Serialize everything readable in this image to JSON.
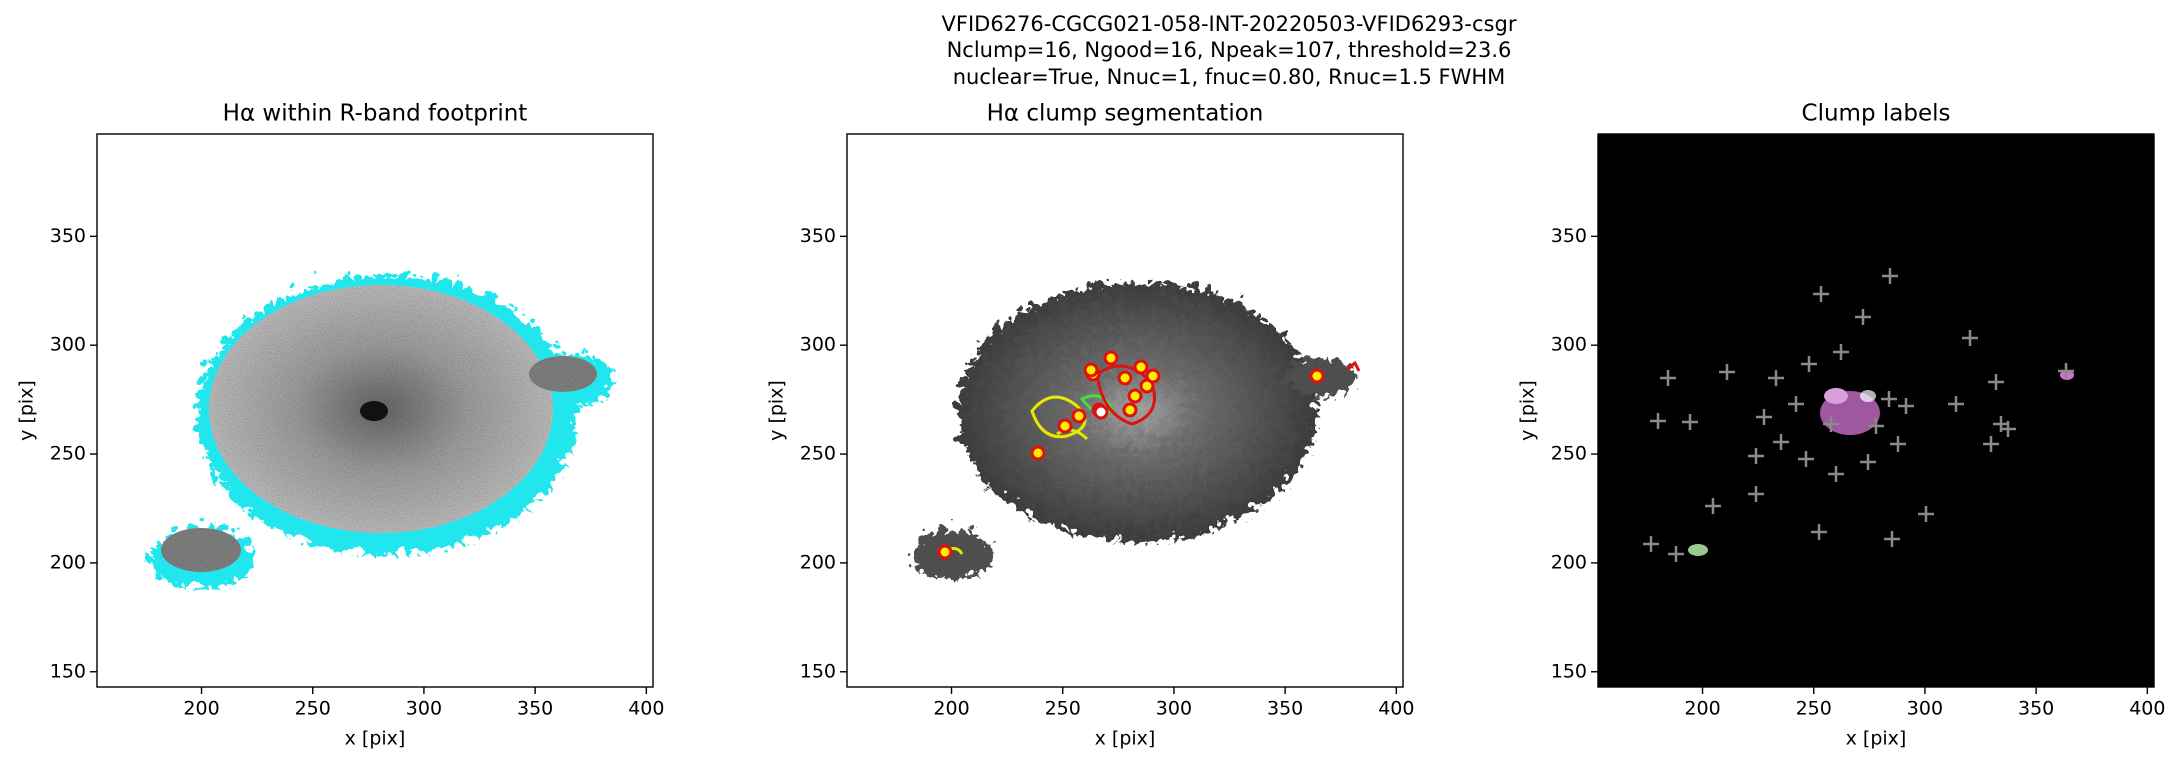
{
  "title": [
    "VFID6276-CGCG021-058-INT-20220503-VFID6293-csgr",
    "Nclump=16, Ngood=16, Npeak=107, threshold=23.6",
    "nuclear=True, Nnuc=1, fnuc=0.80, Rnuc=1.5 FWHM"
  ],
  "chart_data": [
    {
      "type": "image",
      "title": "Hα within R-band footprint",
      "xlabel": "x [pix]",
      "ylabel": "y [pix]",
      "xlim": [
        153,
        403
      ],
      "ylim": [
        143,
        397
      ],
      "xticks": [
        200,
        250,
        300,
        350,
        400
      ],
      "yticks": [
        150,
        200,
        250,
        300,
        350
      ]
    },
    {
      "type": "image",
      "title": "Hα clump segmentation",
      "xlabel": "x [pix]",
      "ylabel": "y [pix]",
      "xlim": [
        153,
        403
      ],
      "ylim": [
        143,
        397
      ],
      "xticks": [
        200,
        250,
        300,
        350,
        400
      ],
      "yticks": [
        150,
        200,
        250,
        300,
        350
      ]
    },
    {
      "type": "image",
      "title": "Clump labels",
      "xlabel": "x [pix]",
      "ylabel": "y [pix]",
      "xlim": [
        153,
        403
      ],
      "ylim": [
        143,
        397
      ],
      "xticks": [
        200,
        250,
        300,
        350,
        400
      ],
      "yticks": [
        150,
        200,
        250,
        300,
        350
      ]
    }
  ]
}
